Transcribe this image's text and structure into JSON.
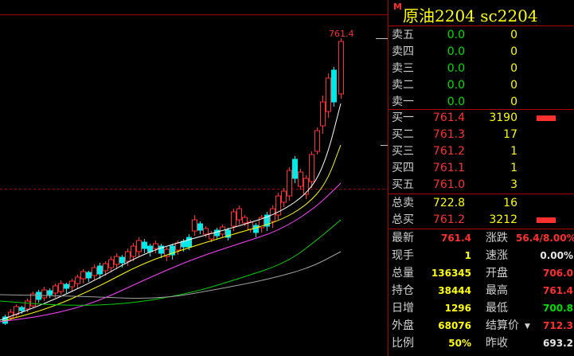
{
  "title": {
    "badge": "M",
    "name": "原油2204",
    "code": "sc2204",
    "full": "原油2204  sc2204"
  },
  "chart": {
    "high_label": "761.4",
    "colors": {
      "up": "#ff3030",
      "down": "#00e8e8",
      "ma5": "#ffffff",
      "ma10": "#ffff00",
      "ma20": "#ff40ff",
      "ma40": "#00d000",
      "ma60": "#a0a0a0",
      "ref_line": "#a00000"
    }
  },
  "sell_orders": [
    {
      "label": "卖五",
      "price": "0.0",
      "volume": "0"
    },
    {
      "label": "卖四",
      "price": "0.0",
      "volume": "0"
    },
    {
      "label": "卖三",
      "price": "0.0",
      "volume": "0"
    },
    {
      "label": "卖二",
      "price": "0.0",
      "volume": "0"
    },
    {
      "label": "卖一",
      "price": "0.0",
      "volume": "0"
    }
  ],
  "buy_orders": [
    {
      "label": "买一",
      "price": "761.4",
      "volume": "3190"
    },
    {
      "label": "买二",
      "price": "761.3",
      "volume": "17"
    },
    {
      "label": "买三",
      "price": "761.2",
      "volume": "1"
    },
    {
      "label": "买四",
      "price": "761.1",
      "volume": "1"
    },
    {
      "label": "买五",
      "price": "761.0",
      "volume": "3"
    }
  ],
  "totals": [
    {
      "label": "总卖",
      "price": "722.8",
      "volume": "16"
    },
    {
      "label": "总买",
      "price": "761.2",
      "volume": "3212"
    }
  ],
  "stats": [
    {
      "l1": "最新",
      "v1": "761.4",
      "c1": "red",
      "l2": "涨跌",
      "v2": "56.4/8.00%",
      "c2": "red"
    },
    {
      "l1": "现手",
      "v1": "1",
      "c1": "yellow",
      "l2": "速涨",
      "v2": "0.00%",
      "c2": "white"
    },
    {
      "l1": "总量",
      "v1": "136345",
      "c1": "yellow",
      "l2": "开盘",
      "v2": "706.0",
      "c2": "red"
    },
    {
      "l1": "持仓",
      "v1": "38444",
      "c1": "yellow",
      "l2": "最高",
      "v2": "761.4",
      "c2": "red"
    },
    {
      "l1": "日增",
      "v1": "1296",
      "c1": "yellow",
      "l2": "最低",
      "v2": "700.8",
      "c2": "green"
    },
    {
      "l1": "外盘",
      "v1": "68076",
      "c1": "yellow",
      "l2": "结算价",
      "v2": "712.3",
      "c2": "red"
    },
    {
      "l1": "比例",
      "v1": "50%",
      "c1": "yellow",
      "l2": "昨收",
      "v2": "693.2",
      "c2": "white"
    }
  ]
}
